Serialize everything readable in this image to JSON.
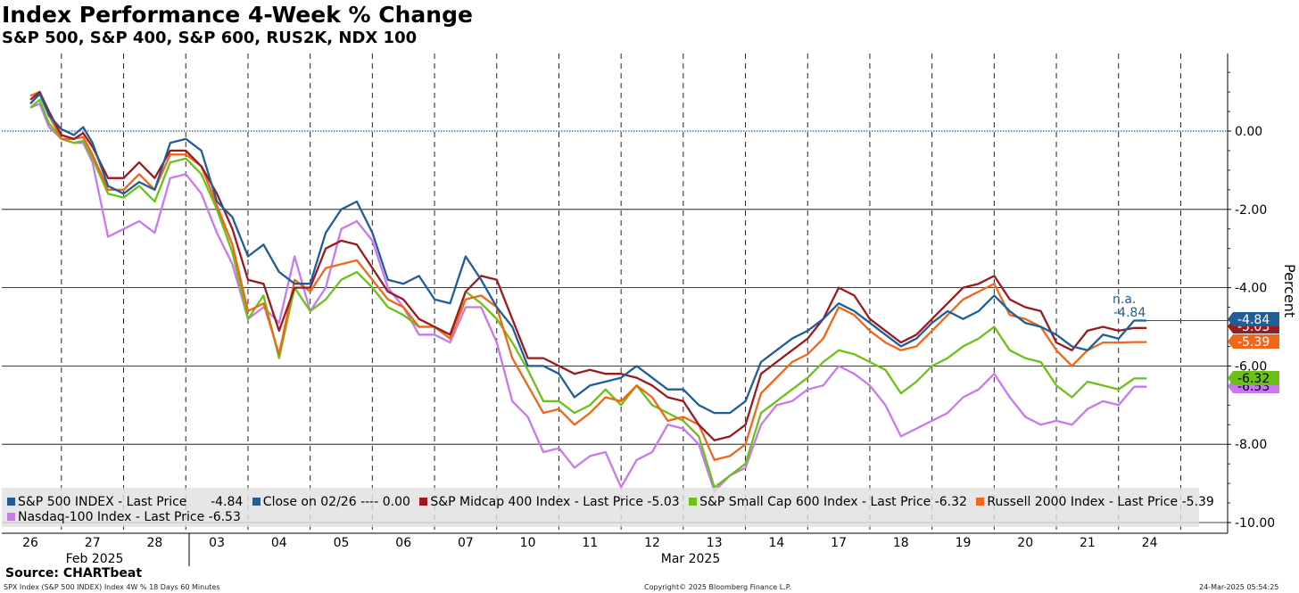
{
  "title": "Index Performance 4-Week % Change",
  "subtitle": "S&P 500, S&P 400, S&P 600, RUS2K, NDX 100",
  "source": "Source: CHARTbeat",
  "footer": {
    "left": "SPX Index (S&P 500 INDEX) Index 4W % 18 Days 60 Minutes",
    "center": "Copyright© 2025 Bloomberg Finance L.P.",
    "right": "24-Mar-2025 05:54:25"
  },
  "colors": {
    "sp500": "#1f5e96",
    "close": "#1f5e96",
    "midcap": "#9a1a1f",
    "smallcap": "#6cc117",
    "russell": "#f0661a",
    "nasdaq": "#c879f0"
  },
  "annotation": {
    "na": "n.a.",
    "value": "-4.84"
  },
  "legend": [
    {
      "key": "sp500",
      "label": "S&P 500 INDEX - Last Price",
      "value": "-4.84"
    },
    {
      "key": "close",
      "label": "Close on 02/26 ----",
      "value": "0.00"
    },
    {
      "key": "midcap",
      "label": "S&P Midcap 400 Index - Last Price",
      "value": "-5.03"
    },
    {
      "key": "smallcap",
      "label": "S&P Small Cap 600 Index - Last Price",
      "value": "-6.32"
    },
    {
      "key": "russell",
      "label": "Russell 2000 Index - Last Price",
      "value": "-5.39"
    },
    {
      "key": "nasdaq",
      "label": "Nasdaq-100 Index - Last Price",
      "value": "-6.53"
    }
  ],
  "chart_data": {
    "type": "line",
    "ylabel": "Percent",
    "ylim": [
      -10.2,
      2.0
    ],
    "yticks": [
      "0.00",
      "-2.00",
      "-4.00",
      "-6.00",
      "-8.00",
      "-10.00"
    ],
    "ytick_values": [
      0,
      -2,
      -4,
      -6,
      -8,
      -10
    ],
    "x_days": [
      "26",
      "27",
      "28",
      "03",
      "04",
      "05",
      "06",
      "07",
      "10",
      "11",
      "12",
      "13",
      "14",
      "17",
      "18",
      "19",
      "20",
      "21",
      "24"
    ],
    "month_labels": [
      "Feb 2025",
      "Mar 2025"
    ],
    "grid": true,
    "legend_position": "bottom",
    "end_labels": [
      {
        "key": "sp500",
        "text": "-4.84",
        "value": -4.84
      },
      {
        "key": "midcap",
        "text": "-5.03",
        "value": -5.03
      },
      {
        "key": "russell",
        "text": "-5.39",
        "value": -5.39
      },
      {
        "key": "smallcap",
        "text": "-6.32",
        "value": -6.32
      },
      {
        "key": "nasdaq",
        "text": "-6.53",
        "value": -6.53
      }
    ],
    "reference_line": {
      "name": "Close on 02/26",
      "value": 0.0
    },
    "series": [
      {
        "key": "sp500",
        "name": "S&P 500 INDEX",
        "x": [
          0,
          0.15,
          0.3,
          0.5,
          0.7,
          0.85,
          1.0,
          1.25,
          1.5,
          1.75,
          2.0,
          2.25,
          2.5,
          2.75,
          3.0,
          3.25,
          3.5,
          3.75,
          4.0,
          4.25,
          4.5,
          4.75,
          5.0,
          5.25,
          5.5,
          5.75,
          6.0,
          6.25,
          6.5,
          6.75,
          7.0,
          7.25,
          7.5,
          7.75,
          8.0,
          8.25,
          8.5,
          8.75,
          9.0,
          9.25,
          9.5,
          9.75,
          10.0,
          10.25,
          10.5,
          10.75,
          11.0,
          11.25,
          11.5,
          11.75,
          12.0,
          12.25,
          12.5,
          12.75,
          13.0,
          13.25,
          13.5,
          13.75,
          14.0,
          14.25,
          14.5,
          14.75,
          15.0,
          15.25,
          15.5,
          15.75,
          16.0,
          16.25,
          16.5,
          16.75,
          17.0,
          17.25,
          17.5,
          17.75,
          17.95
        ],
        "values": [
          0.7,
          0.95,
          0.4,
          0.05,
          -0.1,
          0.1,
          -0.3,
          -1.4,
          -1.6,
          -1.3,
          -1.5,
          -0.3,
          -0.2,
          -0.5,
          -1.8,
          -2.2,
          -3.2,
          -2.9,
          -3.6,
          -3.9,
          -3.9,
          -2.6,
          -2.0,
          -1.8,
          -2.6,
          -3.8,
          -3.9,
          -3.7,
          -4.3,
          -4.4,
          -3.2,
          -3.8,
          -4.5,
          -5.0,
          -6.0,
          -6.0,
          -6.2,
          -6.8,
          -6.5,
          -6.4,
          -6.3,
          -6.0,
          -6.3,
          -6.6,
          -6.6,
          -7.0,
          -7.2,
          -7.2,
          -6.9,
          -5.9,
          -5.6,
          -5.3,
          -5.1,
          -4.8,
          -4.4,
          -4.6,
          -4.9,
          -5.2,
          -5.5,
          -5.3,
          -4.9,
          -4.6,
          -4.8,
          -4.6,
          -4.2,
          -4.6,
          -4.9,
          -5.0,
          -5.2,
          -5.5,
          -5.6,
          -5.2,
          -5.3,
          -4.84,
          -4.84
        ]
      },
      {
        "key": "midcap",
        "name": "S&P Midcap 400 Index",
        "x": [
          0,
          0.15,
          0.3,
          0.5,
          0.7,
          0.85,
          1.0,
          1.25,
          1.5,
          1.75,
          2.0,
          2.25,
          2.5,
          2.75,
          3.0,
          3.25,
          3.5,
          3.75,
          4.0,
          4.25,
          4.5,
          4.75,
          5.0,
          5.25,
          5.5,
          5.75,
          6.0,
          6.25,
          6.5,
          6.75,
          7.0,
          7.25,
          7.5,
          7.75,
          8.0,
          8.25,
          8.5,
          8.75,
          9.0,
          9.25,
          9.5,
          9.75,
          10.0,
          10.25,
          10.5,
          10.75,
          11.0,
          11.25,
          11.5,
          11.75,
          12.0,
          12.25,
          12.5,
          12.75,
          13.0,
          13.25,
          13.5,
          13.75,
          14.0,
          14.25,
          14.5,
          14.75,
          15.0,
          15.25,
          15.5,
          15.75,
          16.0,
          16.25,
          16.5,
          16.75,
          17.0,
          17.25,
          17.5,
          17.75,
          17.95
        ],
        "values": [
          0.8,
          1.0,
          0.5,
          -0.1,
          -0.2,
          -0.05,
          -0.4,
          -1.2,
          -1.2,
          -0.8,
          -1.2,
          -0.5,
          -0.5,
          -0.9,
          -1.6,
          -2.5,
          -3.8,
          -3.9,
          -5.1,
          -4.0,
          -4.0,
          -3.0,
          -2.8,
          -2.9,
          -3.5,
          -4.1,
          -4.3,
          -4.8,
          -5.0,
          -5.2,
          -4.1,
          -3.7,
          -3.8,
          -4.8,
          -5.8,
          -5.8,
          -6.0,
          -6.2,
          -6.1,
          -6.2,
          -6.2,
          -6.3,
          -6.5,
          -6.8,
          -6.9,
          -7.5,
          -7.9,
          -7.8,
          -7.5,
          -6.2,
          -5.9,
          -5.6,
          -5.3,
          -4.8,
          -4.0,
          -4.2,
          -4.8,
          -5.1,
          -5.4,
          -5.2,
          -4.8,
          -4.4,
          -4.0,
          -3.9,
          -3.7,
          -4.3,
          -4.5,
          -4.6,
          -5.4,
          -5.6,
          -5.1,
          -5.0,
          -5.1,
          -5.03,
          -5.03
        ]
      },
      {
        "key": "russell",
        "name": "Russell 2000 Index",
        "x": [
          0,
          0.15,
          0.3,
          0.5,
          0.7,
          0.85,
          1.0,
          1.25,
          1.5,
          1.75,
          2.0,
          2.25,
          2.5,
          2.75,
          3.0,
          3.25,
          3.5,
          3.75,
          4.0,
          4.25,
          4.5,
          4.75,
          5.0,
          5.25,
          5.5,
          5.75,
          6.0,
          6.25,
          6.5,
          6.75,
          7.0,
          7.25,
          7.5,
          7.75,
          8.0,
          8.25,
          8.5,
          8.75,
          9.0,
          9.25,
          9.5,
          9.75,
          10.0,
          10.25,
          10.5,
          10.75,
          11.0,
          11.25,
          11.5,
          11.75,
          12.0,
          12.25,
          12.5,
          12.75,
          13.0,
          13.25,
          13.5,
          13.75,
          14.0,
          14.25,
          14.5,
          14.75,
          15.0,
          15.25,
          15.5,
          15.75,
          16.0,
          16.25,
          16.5,
          16.75,
          17.0,
          17.25,
          17.5,
          17.75,
          17.95
        ],
        "values": [
          0.9,
          1.0,
          0.4,
          -0.2,
          -0.2,
          -0.15,
          -0.6,
          -1.5,
          -1.5,
          -1.1,
          -1.5,
          -0.6,
          -0.6,
          -0.9,
          -1.9,
          -2.9,
          -4.6,
          -4.4,
          -5.7,
          -3.8,
          -4.1,
          -3.5,
          -3.4,
          -3.3,
          -3.8,
          -4.3,
          -4.5,
          -5.0,
          -5.0,
          -5.3,
          -4.3,
          -4.2,
          -4.5,
          -5.8,
          -6.5,
          -7.2,
          -7.1,
          -7.5,
          -7.2,
          -6.8,
          -6.9,
          -6.5,
          -6.8,
          -7.4,
          -7.3,
          -7.5,
          -8.4,
          -8.3,
          -8.0,
          -6.7,
          -6.3,
          -5.9,
          -5.7,
          -5.3,
          -4.5,
          -4.7,
          -5.1,
          -5.4,
          -5.6,
          -5.5,
          -5.1,
          -4.7,
          -4.3,
          -4.1,
          -3.9,
          -4.7,
          -4.8,
          -5.0,
          -5.6,
          -6.0,
          -5.6,
          -5.4,
          -5.4,
          -5.39,
          -5.39
        ]
      },
      {
        "key": "smallcap",
        "name": "S&P Small Cap 600 Index",
        "x": [
          0,
          0.15,
          0.3,
          0.5,
          0.7,
          0.85,
          1.0,
          1.25,
          1.5,
          1.75,
          2.0,
          2.25,
          2.5,
          2.75,
          3.0,
          3.25,
          3.5,
          3.75,
          4.0,
          4.25,
          4.5,
          4.75,
          5.0,
          5.25,
          5.5,
          5.75,
          6.0,
          6.25,
          6.5,
          6.75,
          7.0,
          7.25,
          7.5,
          7.75,
          8.0,
          8.25,
          8.5,
          8.75,
          9.0,
          9.25,
          9.5,
          9.75,
          10.0,
          10.25,
          10.5,
          10.75,
          11.0,
          11.25,
          11.5,
          11.75,
          12.0,
          12.25,
          12.5,
          12.75,
          13.0,
          13.25,
          13.5,
          13.75,
          14.0,
          14.25,
          14.5,
          14.75,
          15.0,
          15.25,
          15.5,
          15.75,
          16.0,
          16.25,
          16.5,
          16.75,
          17.0,
          17.25,
          17.5,
          17.75,
          17.95
        ],
        "values": [
          0.6,
          0.8,
          0.2,
          -0.2,
          -0.3,
          -0.25,
          -0.7,
          -1.6,
          -1.7,
          -1.4,
          -1.8,
          -0.8,
          -0.7,
          -1.1,
          -2.0,
          -3.1,
          -4.8,
          -4.2,
          -5.8,
          -4.0,
          -4.6,
          -4.3,
          -3.8,
          -3.6,
          -4.0,
          -4.5,
          -4.7,
          -5.0,
          -5.0,
          -5.3,
          -4.1,
          -4.4,
          -4.8,
          -5.4,
          -6.1,
          -6.9,
          -6.9,
          -7.2,
          -7.0,
          -6.6,
          -7.0,
          -6.5,
          -7.0,
          -7.2,
          -7.4,
          -7.8,
          -9.1,
          -8.8,
          -8.5,
          -7.2,
          -6.9,
          -6.6,
          -6.3,
          -5.9,
          -5.6,
          -5.7,
          -5.9,
          -6.1,
          -6.7,
          -6.4,
          -6.0,
          -5.8,
          -5.5,
          -5.3,
          -5.0,
          -5.6,
          -5.8,
          -5.9,
          -6.5,
          -6.8,
          -6.4,
          -6.5,
          -6.6,
          -6.32,
          -6.32
        ]
      },
      {
        "key": "nasdaq",
        "name": "Nasdaq-100 Index",
        "x": [
          0,
          0.15,
          0.3,
          0.5,
          0.7,
          0.85,
          1.0,
          1.25,
          1.5,
          1.75,
          2.0,
          2.25,
          2.5,
          2.75,
          3.0,
          3.25,
          3.5,
          3.75,
          4.0,
          4.25,
          4.5,
          4.75,
          5.0,
          5.25,
          5.5,
          5.75,
          6.0,
          6.25,
          6.5,
          6.75,
          7.0,
          7.25,
          7.5,
          7.75,
          8.0,
          8.25,
          8.5,
          8.75,
          9.0,
          9.25,
          9.5,
          9.75,
          10.0,
          10.25,
          10.5,
          10.75,
          11.0,
          11.25,
          11.5,
          11.75,
          12.0,
          12.25,
          12.5,
          12.75,
          13.0,
          13.25,
          13.5,
          13.75,
          14.0,
          14.25,
          14.5,
          14.75,
          15.0,
          15.25,
          15.5,
          15.75,
          16.0,
          16.25,
          16.5,
          16.75,
          17.0,
          17.25,
          17.5,
          17.75,
          17.95
        ],
        "values": [
          0.6,
          0.7,
          0.1,
          -0.2,
          -0.3,
          -0.3,
          -0.8,
          -2.7,
          -2.5,
          -2.3,
          -2.6,
          -1.2,
          -1.1,
          -1.6,
          -2.6,
          -3.4,
          -4.8,
          -4.5,
          -4.9,
          -3.2,
          -4.6,
          -4.0,
          -2.5,
          -2.3,
          -2.8,
          -4.0,
          -4.5,
          -5.2,
          -5.2,
          -5.4,
          -4.5,
          -4.5,
          -5.4,
          -6.9,
          -7.3,
          -8.2,
          -8.1,
          -8.6,
          -8.3,
          -8.2,
          -9.1,
          -8.4,
          -8.2,
          -7.5,
          -7.6,
          -8.0,
          -9.2,
          -8.8,
          -8.6,
          -7.5,
          -7.0,
          -6.9,
          -6.6,
          -6.5,
          -6.0,
          -6.2,
          -6.5,
          -7.0,
          -7.8,
          -7.6,
          -7.4,
          -7.2,
          -6.8,
          -6.6,
          -6.2,
          -6.8,
          -7.3,
          -7.5,
          -7.4,
          -7.5,
          -7.1,
          -6.9,
          -7.0,
          -6.53,
          -6.53
        ]
      }
    ]
  }
}
